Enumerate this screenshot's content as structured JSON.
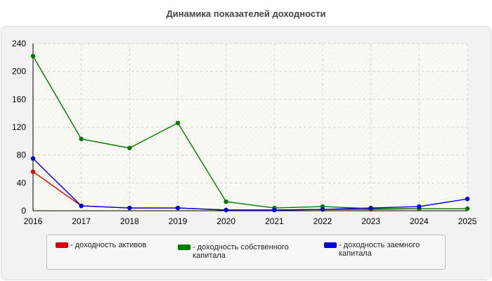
{
  "chart_data": {
    "type": "line",
    "title": "Динамика показателей доходности",
    "xlabel": "",
    "ylabel": "",
    "x": [
      "2016",
      "2017",
      "2018",
      "2019",
      "2020",
      "2021",
      "2022",
      "2023",
      "2024",
      "2025"
    ],
    "ylim": [
      0,
      240
    ],
    "yticks": [
      0,
      40,
      80,
      120,
      160,
      200,
      240
    ],
    "grid": true,
    "legend_position": "bottom",
    "series": [
      {
        "name": "- доходность активов",
        "color": "#e00000",
        "values": [
          56,
          7,
          4,
          4,
          1,
          1,
          2,
          2,
          3,
          null
        ]
      },
      {
        "name": "- доходность собственного капитала",
        "color": "#007a00",
        "values": [
          222,
          103,
          90,
          126,
          13,
          4,
          6,
          3,
          3,
          3
        ]
      },
      {
        "name": "- доходность заемного капитала",
        "color": "#0000e0",
        "values": [
          75,
          7,
          4,
          4,
          1,
          1,
          2,
          4,
          6,
          17
        ]
      }
    ]
  }
}
